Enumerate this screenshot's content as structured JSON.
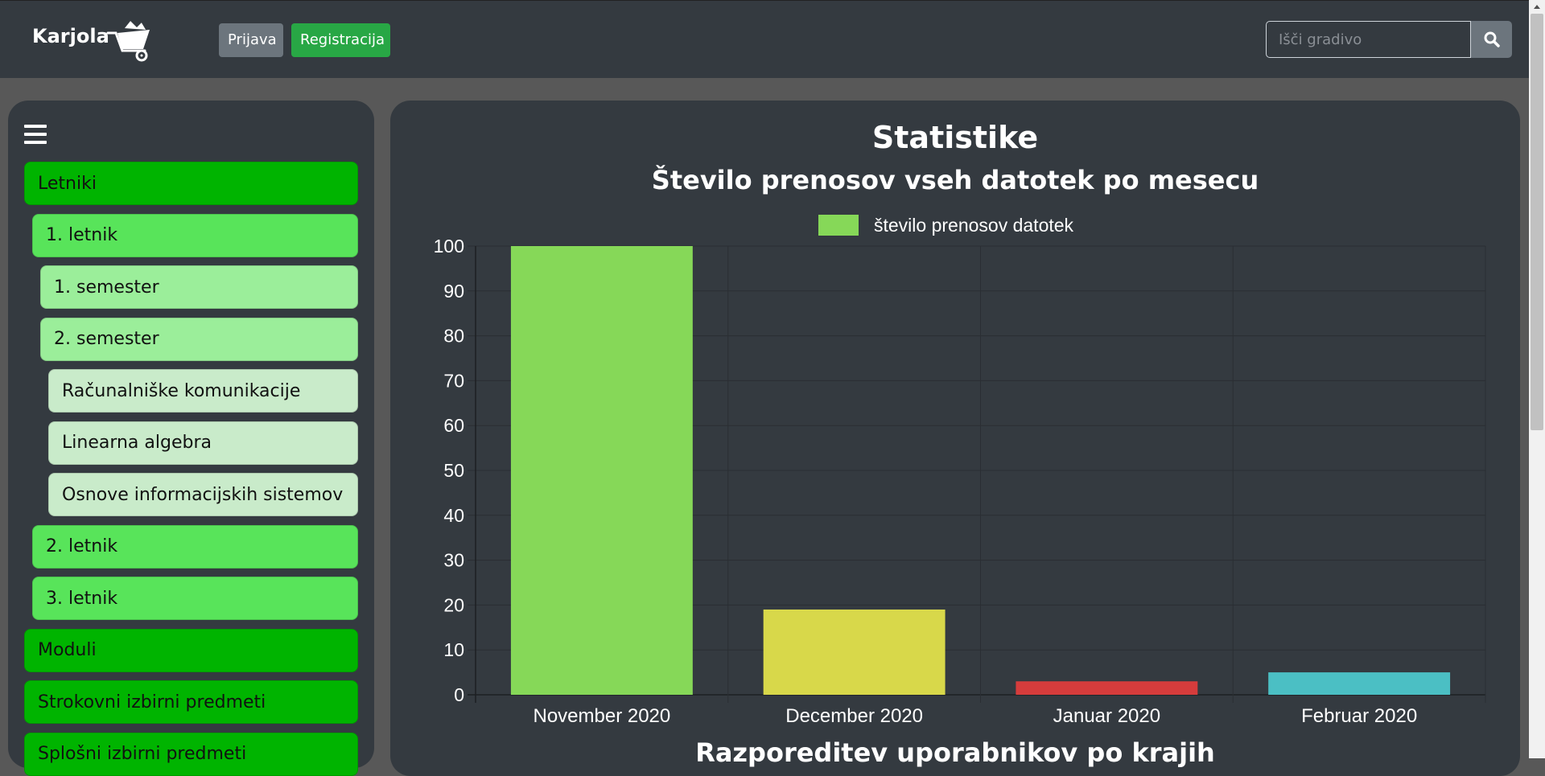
{
  "navbar": {
    "brand": "Karjola",
    "login_label": "Prijava",
    "register_label": "Registracija",
    "search_placeholder": "Išči gradivo"
  },
  "sidebar": {
    "items": [
      {
        "label": "Letniki",
        "level": 0
      },
      {
        "label": "1. letnik",
        "level": 1
      },
      {
        "label": "1. semester",
        "level": 2
      },
      {
        "label": "2. semester",
        "level": 2
      },
      {
        "label": "Računalniške komunikacije",
        "level": 3
      },
      {
        "label": "Linearna algebra",
        "level": 3
      },
      {
        "label": "Osnove informacijskih sistemov",
        "level": 3
      },
      {
        "label": "2. letnik",
        "level": 1
      },
      {
        "label": "3. letnik",
        "level": 1
      },
      {
        "label": "Moduli",
        "level": 0
      },
      {
        "label": "Strokovni izbirni predmeti",
        "level": 0
      },
      {
        "label": "Splošni izbirni predmeti",
        "level": 0
      }
    ]
  },
  "main": {
    "page_title": "Statistike",
    "next_chart_title": "Razporeditev uporabnikov po krajih"
  },
  "chart_data": {
    "type": "bar",
    "title": "Število prenosov vseh datotek po mesecu",
    "categories": [
      "November 2020",
      "December 2020",
      "Januar 2020",
      "Februar 2020"
    ],
    "series": [
      {
        "name": "število prenosov datotek",
        "values": [
          100,
          19,
          3,
          5
        ]
      }
    ],
    "bar_colors": [
      "#86d858",
      "#d8d84a",
      "#d63c3c",
      "#4bbfc4"
    ],
    "legend_color": "#86d858",
    "ylim": [
      0,
      100
    ],
    "yticks": [
      0,
      10,
      20,
      30,
      40,
      50,
      60,
      70,
      80,
      90,
      100
    ],
    "grid": true,
    "legend": "top"
  }
}
